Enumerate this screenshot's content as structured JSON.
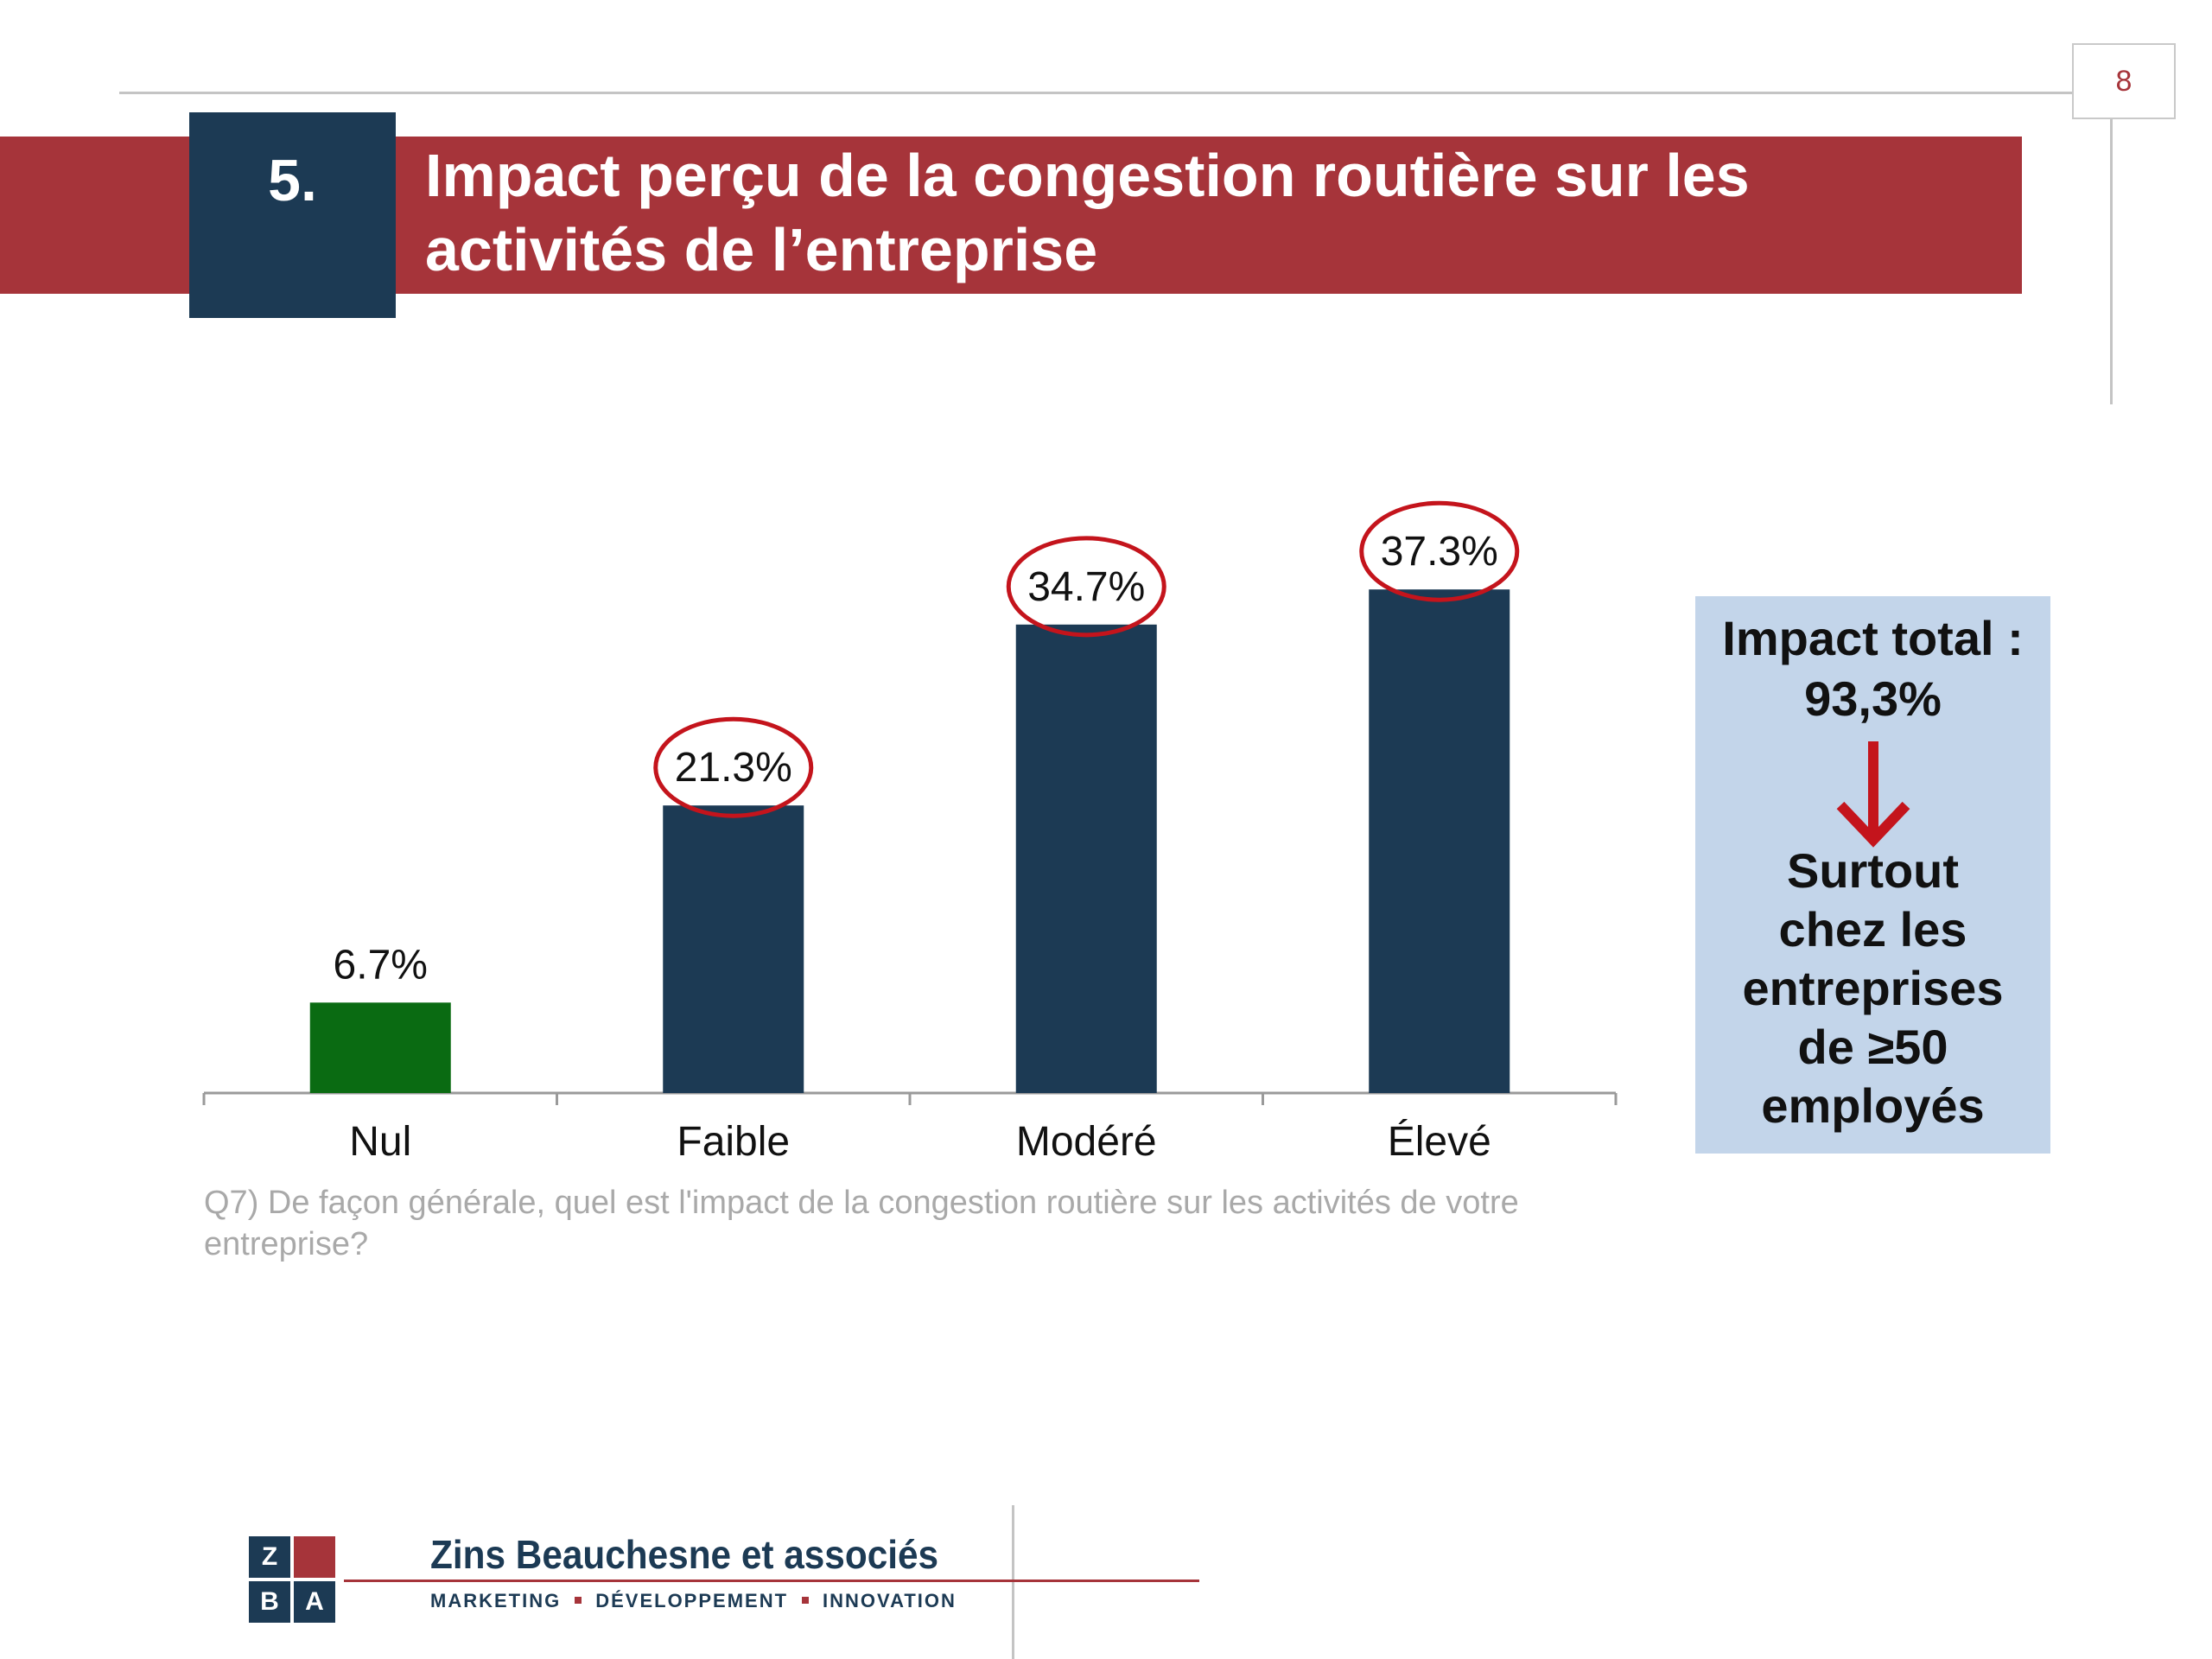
{
  "page": {
    "number": "8"
  },
  "header": {
    "section_number": "5.",
    "title_line1": "Impact perçu de la congestion routière sur les",
    "title_line2": "activités de l’entreprise"
  },
  "chart_data": {
    "type": "bar",
    "categories": [
      "Nul",
      "Faible",
      "Modéré",
      "Élevé"
    ],
    "values": [
      6.7,
      21.3,
      34.7,
      37.3
    ],
    "value_labels": [
      "6.7%",
      "21.3%",
      "34.7%",
      "37.3%"
    ],
    "highlighted": [
      false,
      true,
      true,
      true
    ],
    "bar_colors": [
      "#0a6b12",
      "#1c3a54",
      "#1c3a54",
      "#1c3a54"
    ],
    "highlight_color": "#c4141c",
    "title": "",
    "xlabel": "",
    "ylabel": "",
    "ylim": [
      0,
      40
    ],
    "grid": false,
    "legend": "none"
  },
  "question": "Q7) De façon générale, quel est l'impact de la congestion routière sur les activités de votre entreprise?",
  "callout": {
    "line1": "Impact total :",
    "line2": "93,3%",
    "body": [
      "Surtout",
      "chez les",
      "entreprises",
      "de ≥50",
      "employés"
    ],
    "arrow_icon": "down-arrow-icon",
    "arrow_color": "#c4141c"
  },
  "footer": {
    "logo_letters": [
      "Z",
      "",
      "B",
      "A"
    ],
    "company_name": "Zins Beauchesne et associés",
    "tagline": [
      "MARKETING",
      "DÉVELOPPEMENT",
      "INNOVATION"
    ]
  },
  "colors": {
    "brand_red": "#a6343a",
    "brand_navy": "#1c3a54"
  }
}
